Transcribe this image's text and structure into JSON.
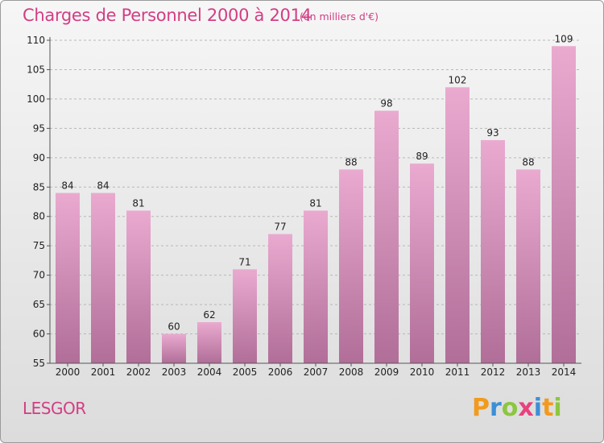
{
  "title": "Charges de Personnel 2000 à 2014",
  "subtitle": "(en milliers d'€)",
  "commune": "LESGOR",
  "brand": {
    "letters": [
      "P",
      "r",
      "o",
      "x",
      "i",
      "t",
      "i"
    ],
    "colors": [
      "#f29a1e",
      "#3c8fd6",
      "#8dc63f",
      "#e8417e",
      "#3c8fd6",
      "#f29a1e",
      "#8dc63f"
    ]
  },
  "colors": {
    "accent": "#d33d84",
    "bar_top": "#eaaad0",
    "bar_bottom": "#b06e98"
  },
  "chart_data": {
    "type": "bar",
    "title": "Charges de Personnel 2000 à 2014",
    "subtitle": "(en milliers d'€)",
    "xlabel": "",
    "ylabel": "",
    "categories": [
      "2000",
      "2001",
      "2002",
      "2003",
      "2004",
      "2005",
      "2006",
      "2007",
      "2008",
      "2009",
      "2010",
      "2011",
      "2012",
      "2013",
      "2014"
    ],
    "values": [
      84,
      84,
      81,
      60,
      62,
      71,
      77,
      81,
      88,
      98,
      89,
      102,
      93,
      88,
      109
    ],
    "ylim": [
      55,
      110
    ],
    "yticks": [
      55,
      60,
      65,
      70,
      75,
      80,
      85,
      90,
      95,
      100,
      105,
      110
    ],
    "grid": "horizontal dashed",
    "data_labels": true
  }
}
